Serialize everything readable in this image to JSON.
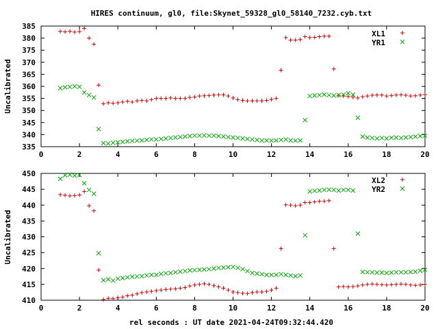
{
  "figure": {
    "title": "HIRES continuum, gl0, file:Skynet_59328_gl0_58140_7232.cyb.txt",
    "xlabel": "rel seconds : UT date 2021-04-24T09:32:44.420"
  },
  "colors": {
    "xl": "#cc0000",
    "yr": "#00aa00",
    "axis": "#000000"
  },
  "chart_data": [
    {
      "type": "scatter",
      "ylabel": "Uncalibrated",
      "xlim": [
        0,
        20
      ],
      "ylim": [
        335,
        385
      ],
      "xticks": [
        0,
        2,
        4,
        6,
        8,
        10,
        12,
        14,
        16,
        18,
        20
      ],
      "yticks": [
        335,
        340,
        345,
        350,
        355,
        360,
        365,
        370,
        375,
        380,
        385
      ],
      "legend_position": "top-right",
      "series": [
        {
          "name": "XL1",
          "marker": "plus",
          "x": [
            1.0,
            1.25,
            1.5,
            1.75,
            2.0,
            2.25,
            2.5,
            2.75,
            3.0,
            3.25,
            3.5,
            3.75,
            4.0,
            4.25,
            4.5,
            4.75,
            5.0,
            5.25,
            5.5,
            5.75,
            6.0,
            6.25,
            6.5,
            6.75,
            7.0,
            7.25,
            7.5,
            7.75,
            8.0,
            8.25,
            8.5,
            8.75,
            9.0,
            9.25,
            9.5,
            9.75,
            10.0,
            10.25,
            10.5,
            10.75,
            11.0,
            11.25,
            11.5,
            11.75,
            12.0,
            12.25,
            12.5,
            12.75,
            13.0,
            13.25,
            13.5,
            13.75,
            14.0,
            14.25,
            14.5,
            14.75,
            15.0,
            15.25,
            15.5,
            15.75,
            16.0,
            16.25,
            16.5,
            16.75,
            17.0,
            17.25,
            17.5,
            17.75,
            18.0,
            18.25,
            18.5,
            18.75,
            19.0,
            19.25,
            19.5,
            19.75,
            20.0
          ],
          "y": [
            382.8,
            382.6,
            382.8,
            382.5,
            382.7,
            384.0,
            380.0,
            377.5,
            360.5,
            352.8,
            353.2,
            353.0,
            353.2,
            353.5,
            353.8,
            353.5,
            354.0,
            354.2,
            354.0,
            354.5,
            355.0,
            355.0,
            355.0,
            355.2,
            355.0,
            355.0,
            355.0,
            355.4,
            355.6,
            356.0,
            356.1,
            356.2,
            356.4,
            356.5,
            356.5,
            356.0,
            355.2,
            354.5,
            354.2,
            354.0,
            354.0,
            354.0,
            354.0,
            354.2,
            354.6,
            355.0,
            366.7,
            380.2,
            379.2,
            379.2,
            379.4,
            380.6,
            380.2,
            380.3,
            380.6,
            380.8,
            380.8,
            367.2,
            356.2,
            356.0,
            355.8,
            355.5,
            355.2,
            355.7,
            356.0,
            356.3,
            356.4,
            356.4,
            356.0,
            356.2,
            356.4,
            356.5,
            356.3,
            356.0,
            356.1,
            356.4,
            356.6
          ]
        },
        {
          "name": "YR1",
          "marker": "cross",
          "x": [
            1.0,
            1.25,
            1.5,
            1.75,
            2.0,
            2.25,
            2.5,
            2.75,
            3.0,
            3.25,
            3.5,
            3.75,
            4.0,
            4.25,
            4.5,
            4.75,
            5.0,
            5.25,
            5.5,
            5.75,
            6.0,
            6.25,
            6.5,
            6.75,
            7.0,
            7.25,
            7.5,
            7.75,
            8.0,
            8.25,
            8.5,
            8.75,
            9.0,
            9.25,
            9.5,
            9.75,
            10.0,
            10.25,
            10.5,
            10.75,
            11.0,
            11.25,
            11.5,
            11.75,
            12.0,
            12.25,
            12.5,
            12.75,
            13.0,
            13.25,
            13.5,
            13.75,
            14.0,
            14.25,
            14.5,
            14.75,
            15.0,
            15.25,
            15.5,
            15.75,
            16.0,
            16.25,
            16.5,
            16.75,
            17.0,
            17.25,
            17.5,
            17.75,
            18.0,
            18.25,
            18.5,
            18.75,
            19.0,
            19.25,
            19.5,
            19.75,
            20.0
          ],
          "y": [
            359.3,
            359.6,
            359.8,
            360.0,
            359.8,
            357.5,
            356.4,
            355.4,
            342.3,
            336.5,
            336.3,
            336.6,
            336.8,
            337.0,
            337.2,
            337.4,
            337.5,
            337.6,
            337.8,
            338.0,
            338.0,
            338.2,
            338.4,
            338.6,
            338.8,
            339.0,
            339.2,
            339.4,
            339.6,
            339.6,
            339.7,
            339.6,
            339.6,
            339.4,
            339.2,
            339.0,
            338.8,
            338.6,
            338.4,
            338.2,
            338.0,
            337.8,
            337.6,
            337.6,
            337.5,
            337.6,
            337.8,
            338.0,
            337.6,
            337.5,
            337.6,
            346.0,
            356.0,
            356.2,
            356.4,
            356.6,
            356.4,
            356.2,
            356.4,
            356.6,
            357.2,
            356.6,
            347.0,
            339.2,
            338.8,
            338.6,
            338.4,
            338.6,
            338.4,
            338.7,
            338.8,
            338.6,
            338.8,
            339.0,
            339.2,
            339.4,
            339.6
          ]
        }
      ]
    },
    {
      "type": "scatter",
      "ylabel": "Uncalibrated",
      "xlabel": "rel seconds : UT date 2021-04-24T09:32:44.420",
      "xlim": [
        0,
        20
      ],
      "ylim": [
        410,
        450
      ],
      "xticks": [
        0,
        2,
        4,
        6,
        8,
        10,
        12,
        14,
        16,
        18,
        20
      ],
      "yticks": [
        410,
        415,
        420,
        425,
        430,
        435,
        440,
        445,
        450
      ],
      "legend_position": "top-right",
      "series": [
        {
          "name": "XL2",
          "marker": "plus",
          "x": [
            1.0,
            1.25,
            1.5,
            1.75,
            2.0,
            2.25,
            2.5,
            2.75,
            3.0,
            3.25,
            3.5,
            3.75,
            4.0,
            4.25,
            4.5,
            4.75,
            5.0,
            5.25,
            5.5,
            5.75,
            6.0,
            6.25,
            6.5,
            6.75,
            7.0,
            7.25,
            7.5,
            7.75,
            8.0,
            8.25,
            8.5,
            8.75,
            9.0,
            9.25,
            9.5,
            9.75,
            10.0,
            10.25,
            10.5,
            10.75,
            11.0,
            11.25,
            11.5,
            11.75,
            12.0,
            12.25,
            12.5,
            12.75,
            13.0,
            13.25,
            13.5,
            13.75,
            14.0,
            14.25,
            14.5,
            14.75,
            15.0,
            15.25,
            15.5,
            15.75,
            16.0,
            16.25,
            16.5,
            16.75,
            17.0,
            17.25,
            17.5,
            17.75,
            18.0,
            18.25,
            18.5,
            18.75,
            19.0,
            19.25,
            19.5,
            19.75,
            20.0
          ],
          "y": [
            443.3,
            443.1,
            442.9,
            443.0,
            443.2,
            444.3,
            439.8,
            438.2,
            419.5,
            410.2,
            410.6,
            410.5,
            410.8,
            411.0,
            411.4,
            411.6,
            412.0,
            412.4,
            412.6,
            412.8,
            413.0,
            413.2,
            413.4,
            413.5,
            413.6,
            413.8,
            414.0,
            414.5,
            414.8,
            415.0,
            415.2,
            415.0,
            414.6,
            414.2,
            413.8,
            413.2,
            412.6,
            412.4,
            412.2,
            412.1,
            412.4,
            412.6,
            412.6,
            412.8,
            413.2,
            413.8,
            426.3,
            440.1,
            440.0,
            439.8,
            440.0,
            440.8,
            440.8,
            441.0,
            441.2,
            441.2,
            441.4,
            426.3,
            414.2,
            414.3,
            414.2,
            414.3,
            414.5,
            414.8,
            415.0,
            415.1,
            415.0,
            414.9,
            414.8,
            414.9,
            415.0,
            415.1,
            415.0,
            414.8,
            414.7,
            414.8,
            415.0
          ]
        },
        {
          "name": "YR2",
          "marker": "cross",
          "x": [
            1.0,
            1.25,
            1.5,
            1.75,
            2.0,
            2.25,
            2.5,
            2.75,
            3.0,
            3.25,
            3.5,
            3.75,
            4.0,
            4.25,
            4.5,
            4.75,
            5.0,
            5.25,
            5.5,
            5.75,
            6.0,
            6.25,
            6.5,
            6.75,
            7.0,
            7.25,
            7.5,
            7.75,
            8.0,
            8.25,
            8.5,
            8.75,
            9.0,
            9.25,
            9.5,
            9.75,
            10.0,
            10.25,
            10.5,
            10.75,
            11.0,
            11.25,
            11.5,
            11.75,
            12.0,
            12.25,
            12.5,
            12.75,
            13.0,
            13.25,
            13.5,
            13.75,
            14.0,
            14.25,
            14.5,
            14.75,
            15.0,
            15.25,
            15.5,
            15.75,
            16.0,
            16.25,
            16.5,
            16.75,
            17.0,
            17.25,
            17.5,
            17.75,
            18.0,
            18.25,
            18.5,
            18.75,
            19.0,
            19.25,
            19.5,
            19.75,
            20.0
          ],
          "y": [
            448.3,
            449.4,
            449.6,
            449.3,
            449.5,
            446.9,
            444.8,
            443.6,
            424.8,
            416.3,
            416.6,
            416.2,
            416.8,
            417.0,
            417.2,
            417.4,
            417.5,
            417.6,
            417.8,
            418.0,
            418.0,
            418.3,
            418.5,
            418.6,
            418.8,
            419.0,
            419.2,
            419.4,
            419.5,
            419.6,
            419.7,
            419.8,
            420.0,
            420.2,
            420.3,
            420.4,
            420.5,
            420.2,
            419.8,
            419.2,
            418.6,
            418.4,
            418.2,
            418.0,
            418.0,
            418.0,
            418.2,
            418.0,
            417.8,
            417.6,
            417.8,
            430.5,
            444.3,
            444.5,
            444.6,
            444.8,
            444.9,
            444.8,
            444.6,
            444.8,
            444.8,
            444.6,
            431.0,
            418.9,
            418.8,
            418.8,
            418.7,
            418.7,
            418.6,
            418.7,
            418.8,
            418.8,
            418.8,
            418.9,
            419.0,
            419.3,
            419.6
          ]
        }
      ]
    }
  ]
}
